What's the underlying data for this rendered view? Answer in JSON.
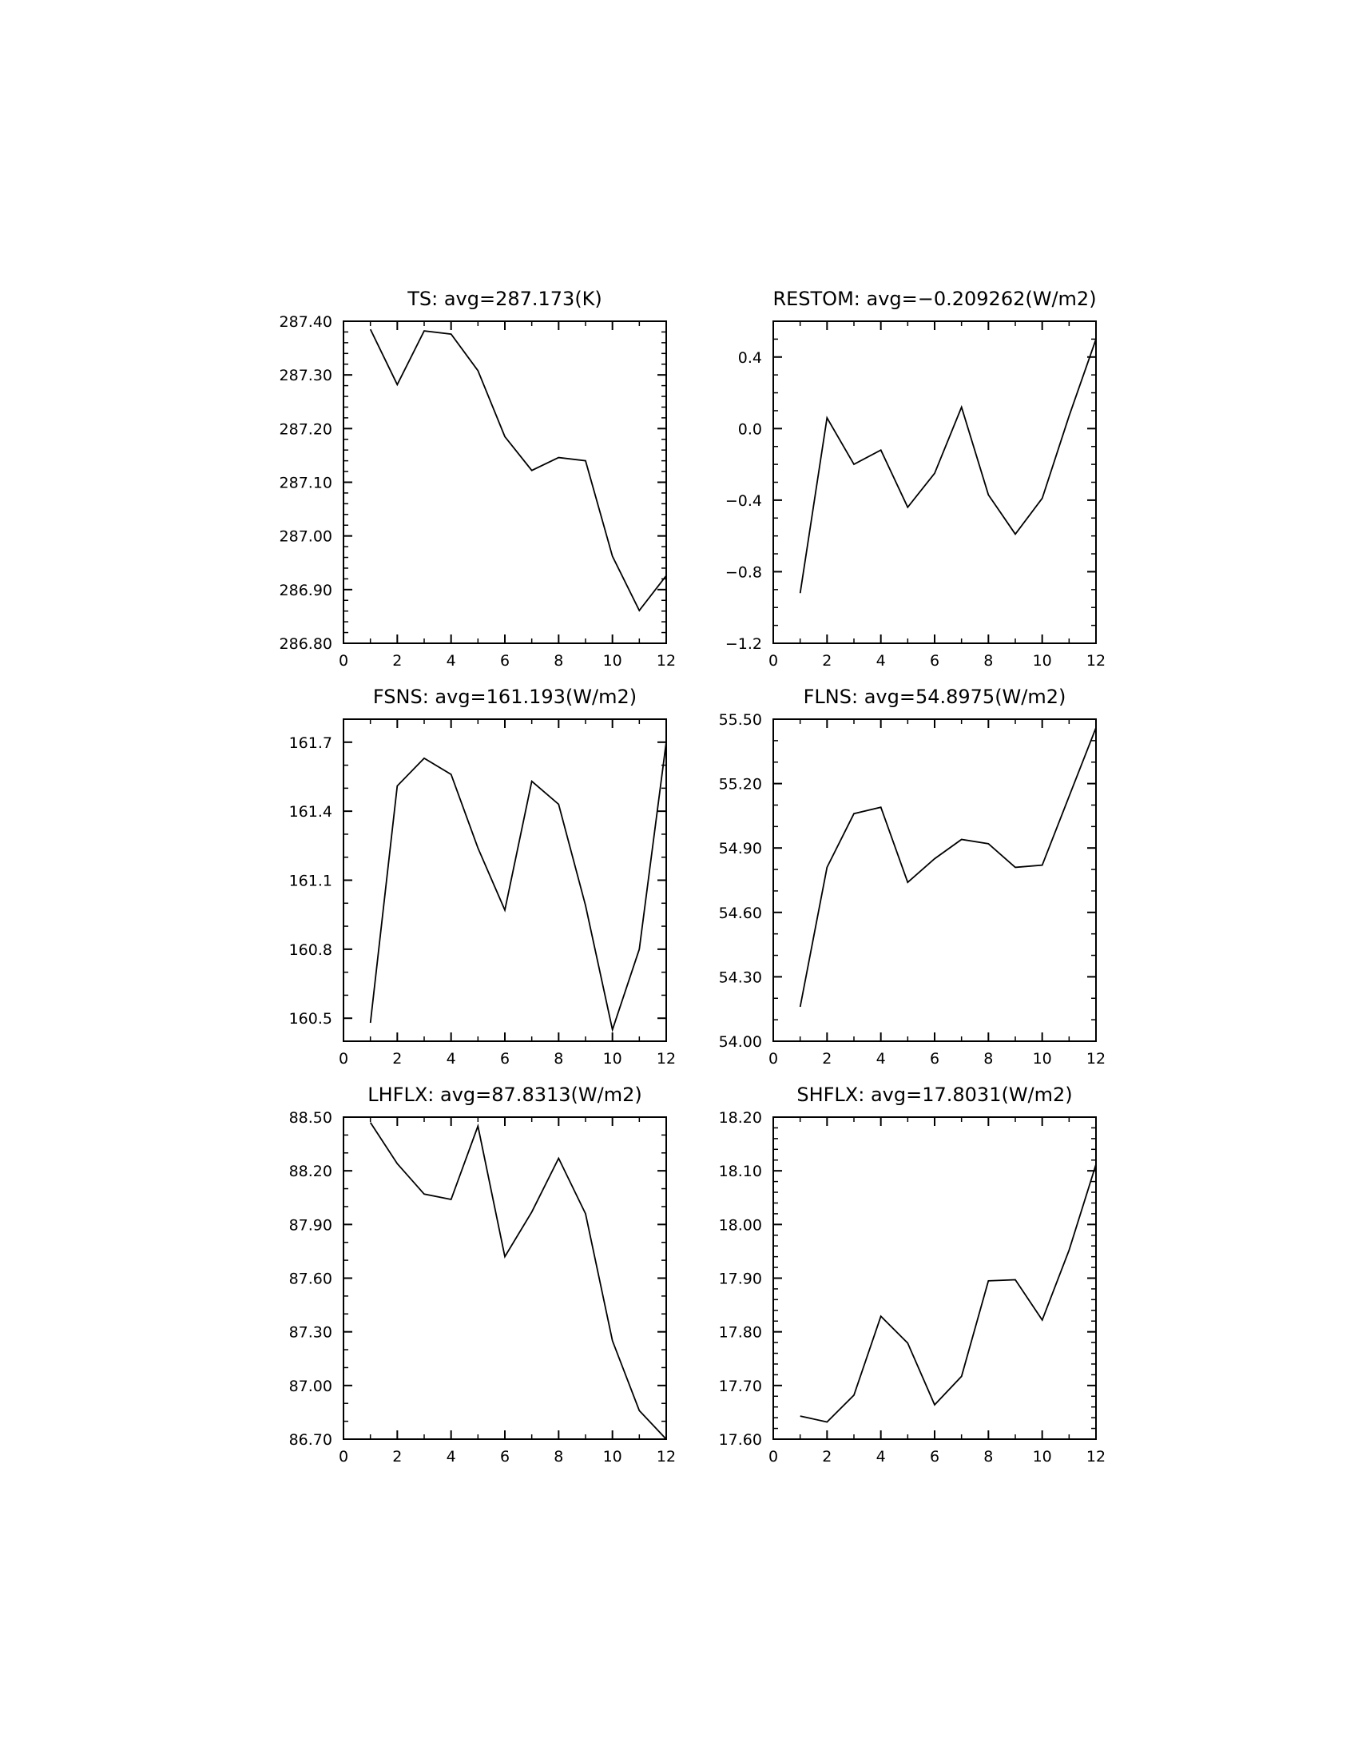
{
  "chart_data": [
    {
      "type": "line",
      "title": "TS:  avg=287.173(K)",
      "x": [
        1,
        2,
        3,
        4,
        5,
        6,
        7,
        8,
        9,
        10,
        11,
        12
      ],
      "values": [
        287.385,
        287.282,
        287.382,
        287.376,
        287.308,
        287.185,
        287.122,
        287.146,
        287.14,
        286.962,
        286.861,
        286.926
      ],
      "xlim": [
        0,
        12
      ],
      "ylim": [
        286.8,
        287.4
      ],
      "xticks": [
        0,
        2,
        4,
        6,
        8,
        10,
        12
      ],
      "xtick_labels": [
        "0",
        "2",
        "4",
        "6",
        "8",
        "10",
        "12"
      ],
      "yticks": [
        286.8,
        286.9,
        287.0,
        287.1,
        287.2,
        287.3,
        287.4
      ],
      "ytick_labels": [
        "286.80",
        "286.90",
        "287.00",
        "287.10",
        "287.20",
        "287.30",
        "287.40"
      ],
      "yminor_per": 5,
      "grid": false,
      "color": "#000000"
    },
    {
      "type": "line",
      "title": "RESTOM:  avg=−0.209262(W/m2)",
      "x": [
        1,
        2,
        3,
        4,
        5,
        6,
        7,
        8,
        9,
        10,
        11,
        12
      ],
      "values": [
        -0.92,
        0.06,
        -0.2,
        -0.12,
        -0.44,
        -0.25,
        0.12,
        -0.37,
        -0.59,
        -0.39,
        0.07,
        0.5
      ],
      "xlim": [
        0,
        12
      ],
      "ylim": [
        -1.2,
        0.6
      ],
      "xticks": [
        0,
        2,
        4,
        6,
        8,
        10,
        12
      ],
      "xtick_labels": [
        "0",
        "2",
        "4",
        "6",
        "8",
        "10",
        "12"
      ],
      "yticks": [
        -1.2,
        -0.8,
        -0.4,
        0.0,
        0.4
      ],
      "ytick_labels": [
        "−1.2",
        "−0.8",
        "−0.4",
        "0.0",
        "0.4"
      ],
      "yminor_per": 4,
      "grid": false,
      "color": "#000000"
    },
    {
      "type": "line",
      "title": "FSNS:  avg=161.193(W/m2)",
      "x": [
        1,
        2,
        3,
        4,
        5,
        6,
        7,
        8,
        9,
        10,
        11,
        12
      ],
      "values": [
        160.48,
        161.51,
        161.63,
        161.56,
        161.24,
        160.97,
        161.53,
        161.43,
        160.99,
        160.45,
        160.8,
        161.7
      ],
      "xlim": [
        0,
        12
      ],
      "ylim": [
        160.4,
        161.8
      ],
      "xticks": [
        0,
        2,
        4,
        6,
        8,
        10,
        12
      ],
      "xtick_labels": [
        "0",
        "2",
        "4",
        "6",
        "8",
        "10",
        "12"
      ],
      "yticks": [
        160.5,
        160.8,
        161.1,
        161.4,
        161.7
      ],
      "ytick_labels": [
        "160.5",
        "160.8",
        "161.1",
        "161.4",
        "161.7"
      ],
      "yminor_per": 3,
      "grid": false,
      "color": "#000000"
    },
    {
      "type": "line",
      "title": "FLNS:  avg=54.8975(W/m2)",
      "x": [
        1,
        2,
        3,
        4,
        5,
        6,
        7,
        8,
        9,
        10,
        11,
        12
      ],
      "values": [
        54.16,
        54.81,
        55.06,
        55.09,
        54.74,
        54.85,
        54.94,
        54.92,
        54.81,
        54.82,
        55.14,
        55.46
      ],
      "xlim": [
        0,
        12
      ],
      "ylim": [
        54.0,
        55.5
      ],
      "xticks": [
        0,
        2,
        4,
        6,
        8,
        10,
        12
      ],
      "xtick_labels": [
        "0",
        "2",
        "4",
        "6",
        "8",
        "10",
        "12"
      ],
      "yticks": [
        54.0,
        54.3,
        54.6,
        54.9,
        55.2,
        55.5
      ],
      "ytick_labels": [
        "54.00",
        "54.30",
        "54.60",
        "54.90",
        "55.20",
        "55.50"
      ],
      "yminor_per": 3,
      "grid": false,
      "color": "#000000"
    },
    {
      "type": "line",
      "title": "LHFLX:  avg=87.8313(W/m2)",
      "x": [
        1,
        2,
        3,
        4,
        5,
        6,
        7,
        8,
        9,
        10,
        11,
        12
      ],
      "values": [
        88.47,
        88.24,
        88.07,
        88.04,
        88.45,
        87.72,
        87.97,
        88.27,
        87.96,
        87.25,
        86.86,
        86.7
      ],
      "xlim": [
        0,
        12
      ],
      "ylim": [
        86.7,
        88.5
      ],
      "xticks": [
        0,
        2,
        4,
        6,
        8,
        10,
        12
      ],
      "xtick_labels": [
        "0",
        "2",
        "4",
        "6",
        "8",
        "10",
        "12"
      ],
      "yticks": [
        86.7,
        87.0,
        87.3,
        87.6,
        87.9,
        88.2,
        88.5
      ],
      "ytick_labels": [
        "86.70",
        "87.00",
        "87.30",
        "87.60",
        "87.90",
        "88.20",
        "88.50"
      ],
      "yminor_per": 3,
      "grid": false,
      "color": "#000000"
    },
    {
      "type": "line",
      "title": "SHFLX:  avg=17.8031(W/m2)",
      "x": [
        1,
        2,
        3,
        4,
        5,
        6,
        7,
        8,
        9,
        10,
        11,
        12
      ],
      "values": [
        17.643,
        17.632,
        17.682,
        17.829,
        17.779,
        17.664,
        17.717,
        17.895,
        17.897,
        17.822,
        17.952,
        18.112
      ],
      "xlim": [
        0,
        12
      ],
      "ylim": [
        17.6,
        18.2
      ],
      "xticks": [
        0,
        2,
        4,
        6,
        8,
        10,
        12
      ],
      "xtick_labels": [
        "0",
        "2",
        "4",
        "6",
        "8",
        "10",
        "12"
      ],
      "yticks": [
        17.6,
        17.7,
        17.8,
        17.9,
        18.0,
        18.1,
        18.2
      ],
      "ytick_labels": [
        "17.60",
        "17.70",
        "17.80",
        "17.90",
        "18.00",
        "18.10",
        "18.20"
      ],
      "yminor_per": 5,
      "grid": false,
      "color": "#000000"
    }
  ]
}
